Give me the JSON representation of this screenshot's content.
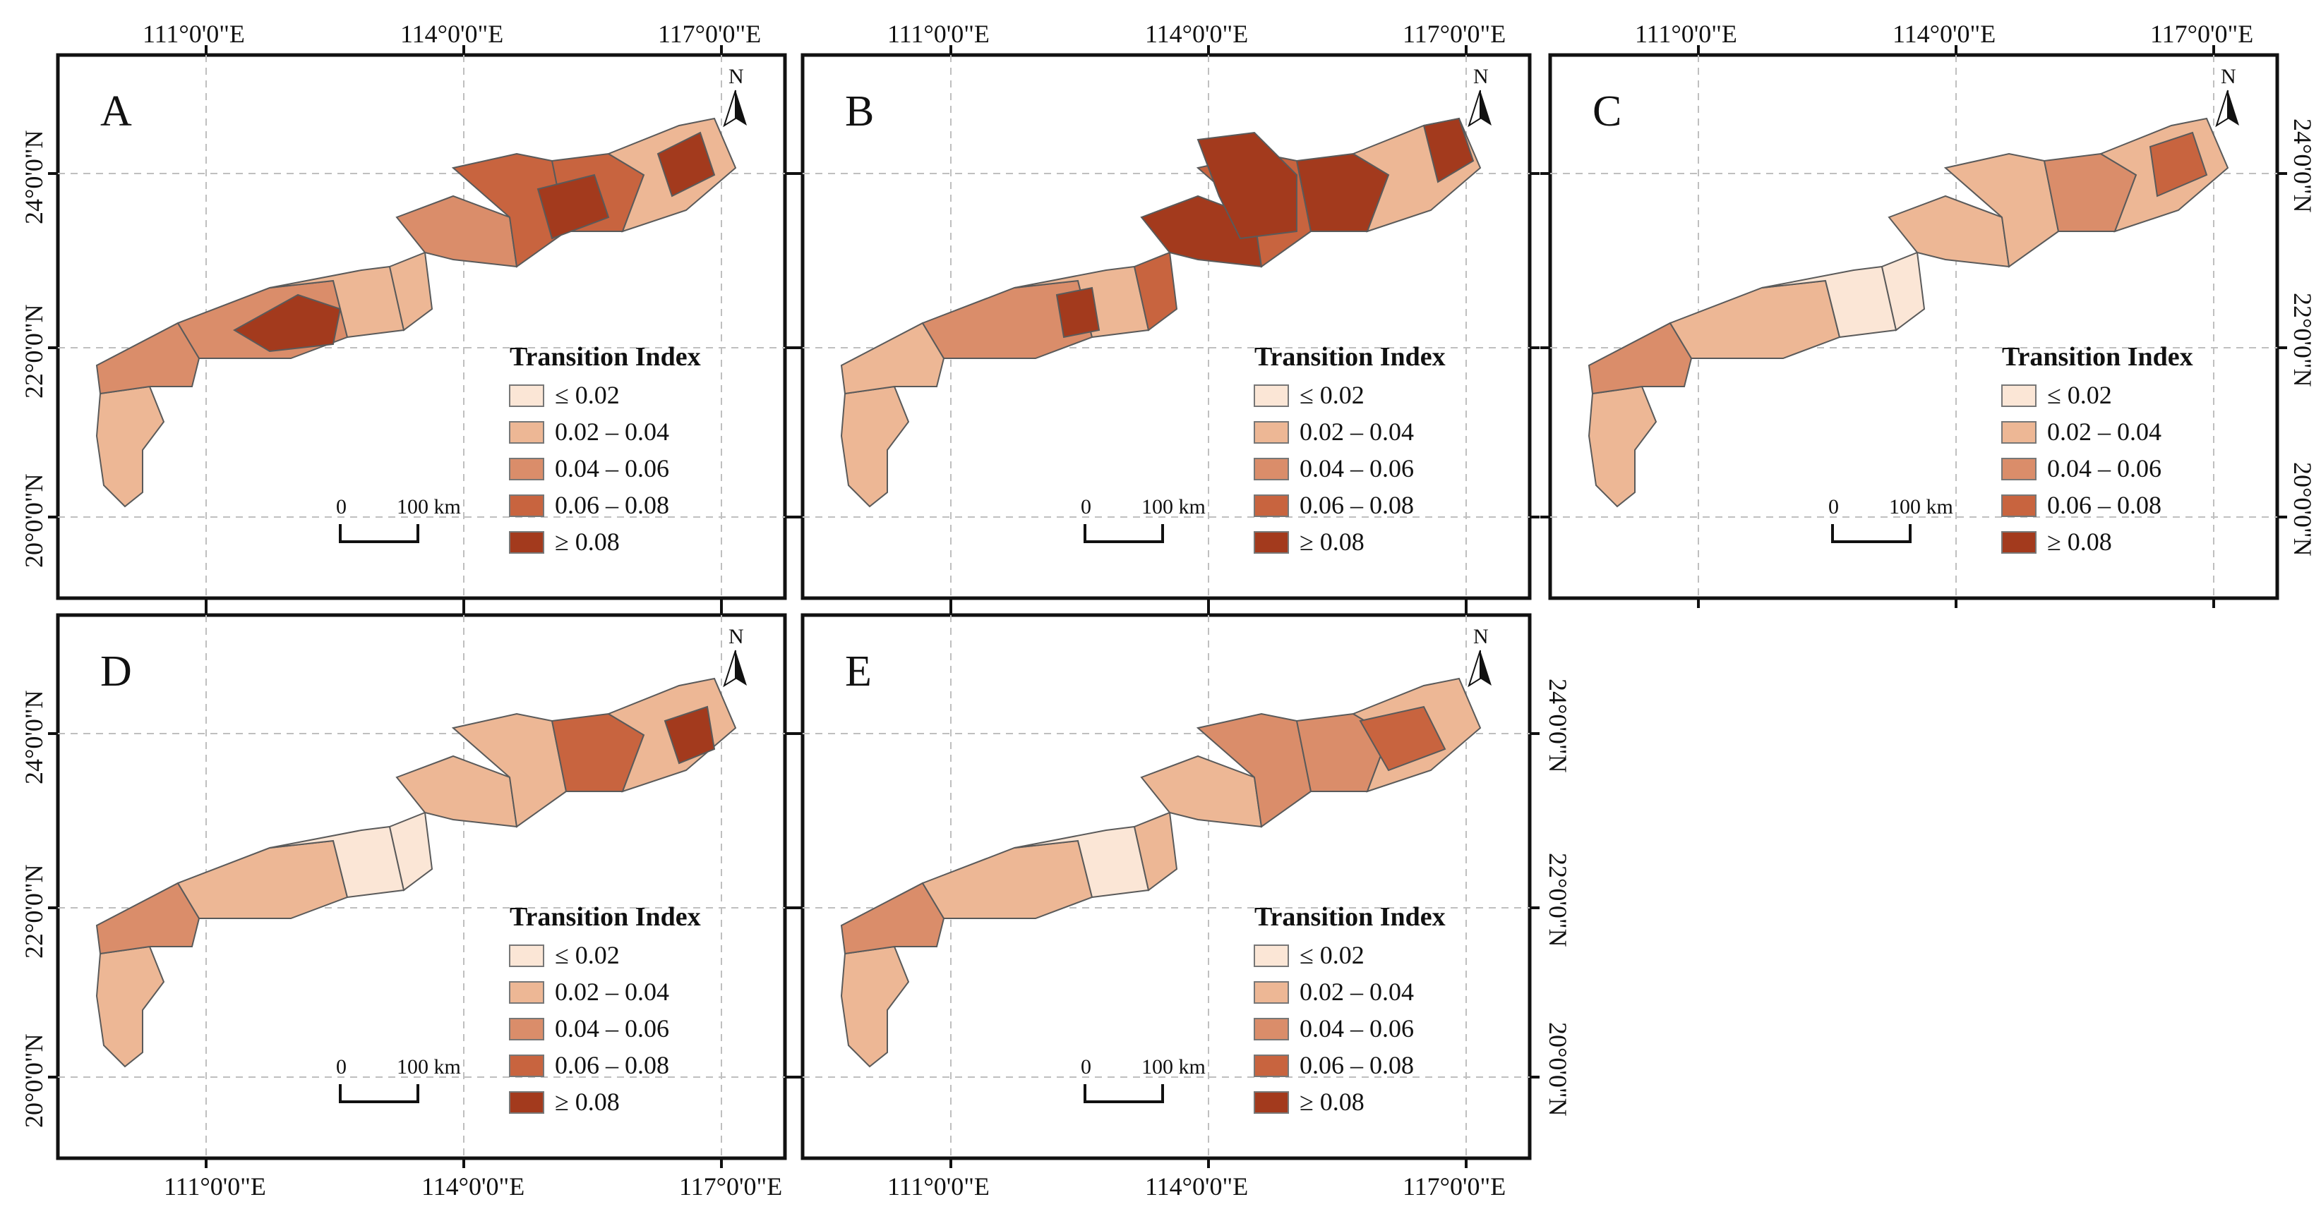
{
  "figure": {
    "lon_labels": [
      "111°0'0\"E",
      "114°0'0\"E",
      "117°0'0\"E"
    ],
    "lat_labels": [
      "24°0'0\"N",
      "22°0'0\"N",
      "20°0'0\"N"
    ],
    "legend_title": "Transition Index",
    "legend_classes": [
      "≤ 0.02",
      "0.02 – 0.04",
      "0.04 – 0.06",
      "0.06 – 0.08",
      "≥ 0.08"
    ],
    "legend_colors": [
      "#FBE6D6",
      "#EDB795",
      "#DA8D6A",
      "#C8643F",
      "#A33A1D"
    ],
    "north_label": "N",
    "scale_start": "0",
    "scale_end": "100 km"
  },
  "panels": [
    {
      "letter": "A",
      "color_classes": [
        2,
        3,
        3,
        2,
        2,
        3,
        4,
        4
      ]
    },
    {
      "letter": "B",
      "color_classes": [
        2,
        2,
        3,
        2,
        4,
        5,
        4,
        5
      ]
    },
    {
      "letter": "C",
      "color_classes": [
        2,
        3,
        2,
        1,
        1,
        2,
        2,
        3
      ]
    },
    {
      "letter": "D",
      "color_classes": [
        2,
        3,
        2,
        1,
        1,
        2,
        2,
        4
      ]
    },
    {
      "letter": "E",
      "color_classes": [
        2,
        3,
        2,
        1,
        2,
        2,
        3,
        3
      ]
    }
  ]
}
